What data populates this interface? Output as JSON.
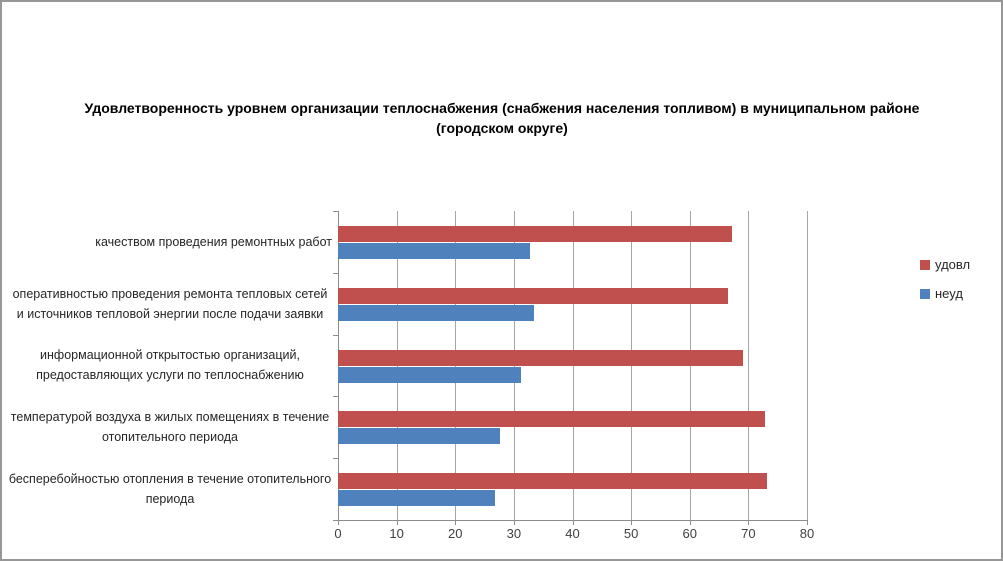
{
  "chart_data": {
    "type": "bar",
    "orientation": "horizontal",
    "title": "Удовлетворенность уровнем организации теплоснабжения (снабжения населения топливом) в муниципальном районе (городском округе)",
    "categories": [
      "качеством проведения ремонтных работ",
      "оперативностью проведения ремонта тепловых сетей и источников тепловой энергии после подачи заявки",
      "информационной открытостью организаций, предоставляющих услуги по теплоснабжению",
      "температурой воздуха в жилых помещениях в течение отопительного периода",
      "бесперебойностью отопления в течение отопительного периода"
    ],
    "series": [
      {
        "name": "удовл",
        "color": "#C0504D",
        "values": [
          67.2,
          66.6,
          69.0,
          72.8,
          73.2
        ]
      },
      {
        "name": "неуд",
        "color": "#4F81BD",
        "values": [
          32.8,
          33.5,
          31.3,
          27.6,
          26.8
        ]
      }
    ],
    "xlim": [
      0,
      80
    ],
    "x_ticks": [
      0,
      10,
      20,
      30,
      40,
      50,
      60,
      70,
      80
    ],
    "xlabel": "",
    "ylabel": "",
    "grid": true,
    "legend_position": "right"
  }
}
